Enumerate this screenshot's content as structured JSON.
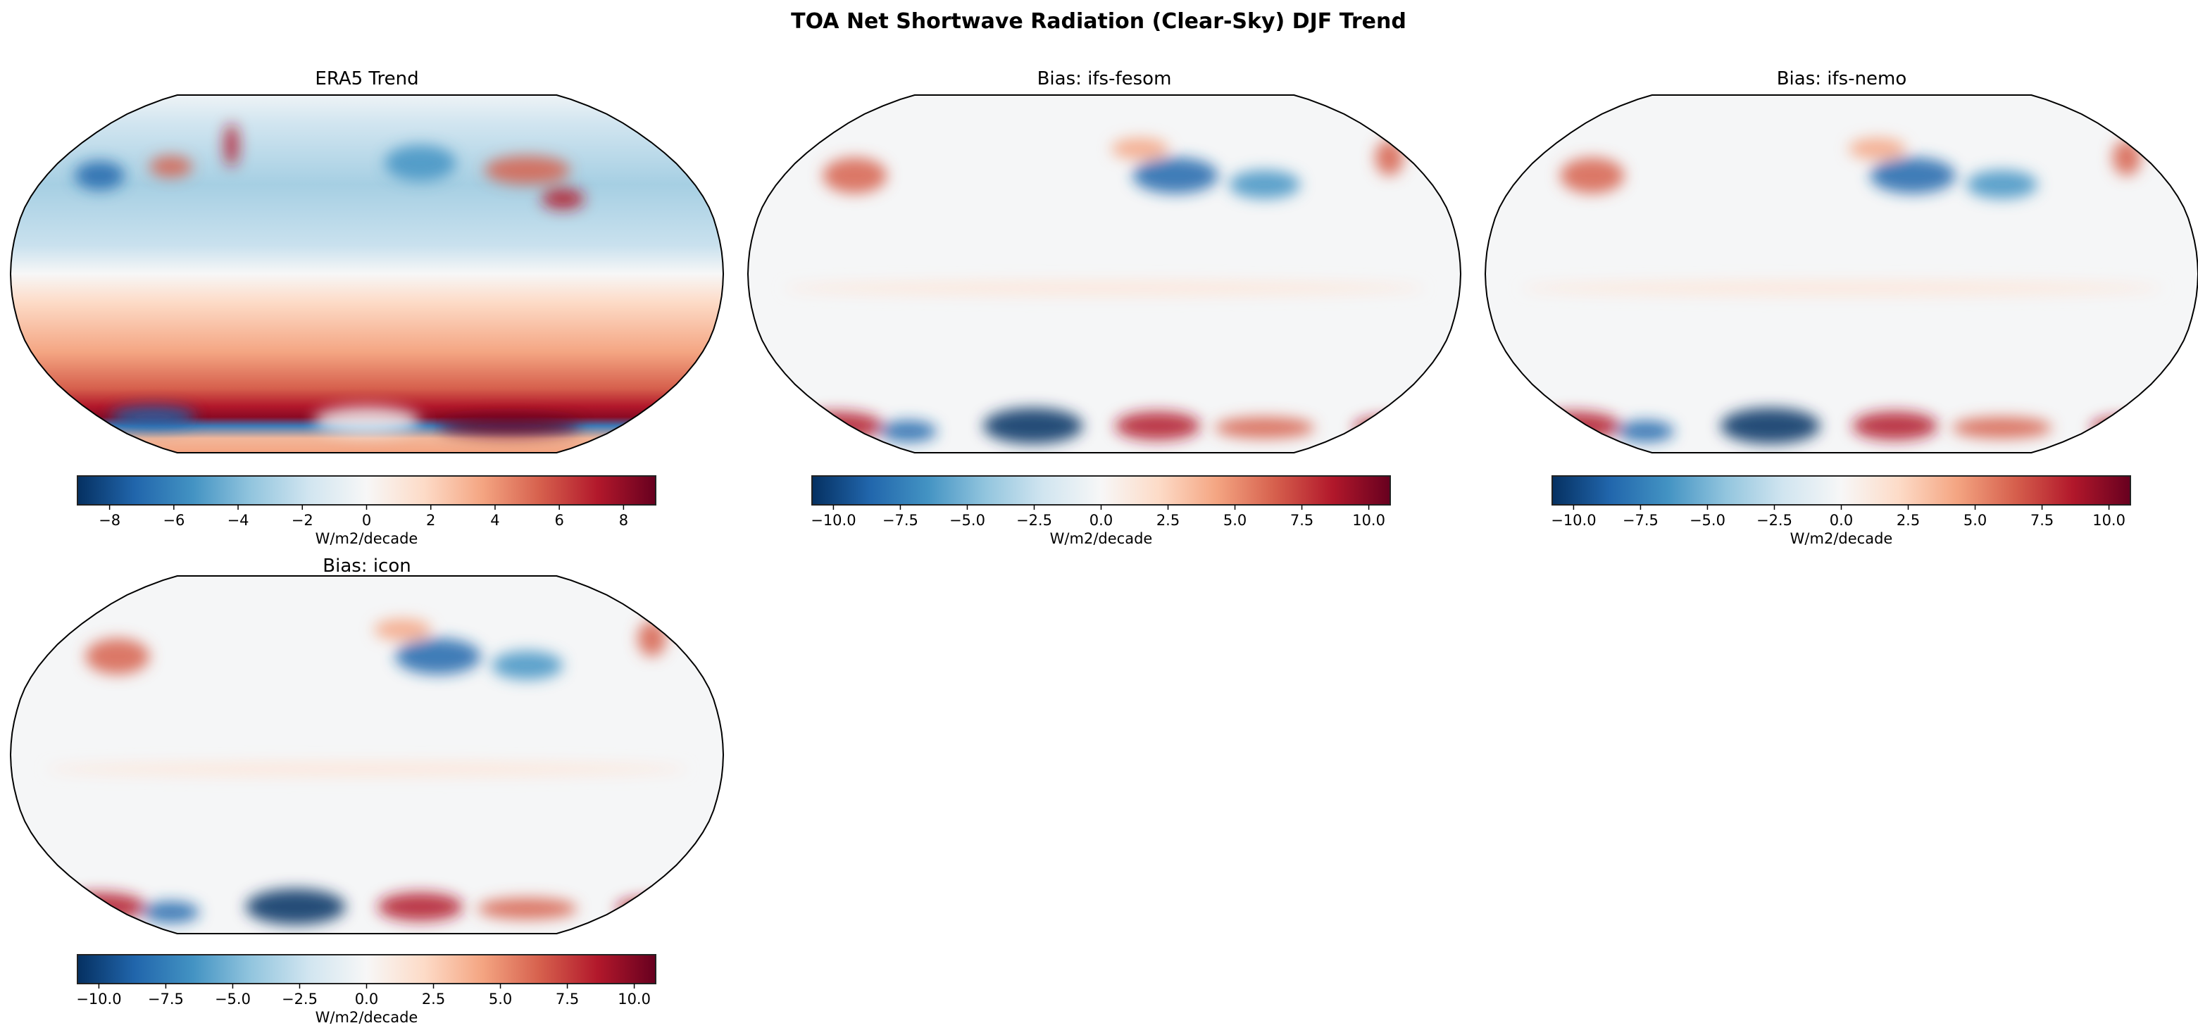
{
  "chart_data": [
    {
      "type": "heatmap",
      "title": "ERA5 Trend",
      "projection": "Robinson",
      "colormap": "RdBu_r",
      "colorbar": {
        "label": "W/m2/decade",
        "range": [
          -9,
          9
        ],
        "ticks": [
          -8,
          -6,
          -4,
          -2,
          0,
          2,
          4,
          6,
          8
        ],
        "tick_labels": [
          "−8",
          "−6",
          "−4",
          "−2",
          "0",
          "2",
          "4",
          "6",
          "8"
        ]
      },
      "style": "era5"
    },
    {
      "type": "heatmap",
      "title": "Bias: ifs-fesom",
      "projection": "Robinson",
      "colormap": "RdBu_r",
      "colorbar": {
        "label": "W/m2/decade",
        "range": [
          -10.8,
          10.8
        ],
        "ticks": [
          -10,
          -7.5,
          -5,
          -2.5,
          0,
          2.5,
          5,
          7.5,
          10
        ],
        "tick_labels": [
          "−10.0",
          "−7.5",
          "−5.0",
          "−2.5",
          "0.0",
          "2.5",
          "5.0",
          "7.5",
          "10.0"
        ]
      },
      "style": "bias"
    },
    {
      "type": "heatmap",
      "title": "Bias: ifs-nemo",
      "projection": "Robinson",
      "colormap": "RdBu_r",
      "colorbar": {
        "label": "W/m2/decade",
        "range": [
          -10.8,
          10.8
        ],
        "ticks": [
          -10,
          -7.5,
          -5,
          -2.5,
          0,
          2.5,
          5,
          7.5,
          10
        ],
        "tick_labels": [
          "−10.0",
          "−7.5",
          "−5.0",
          "−2.5",
          "0.0",
          "2.5",
          "5.0",
          "7.5",
          "10.0"
        ]
      },
      "style": "bias"
    },
    {
      "type": "heatmap",
      "title": "Bias: icon",
      "projection": "Robinson",
      "colormap": "RdBu_r",
      "colorbar": {
        "label": "W/m2/decade",
        "range": [
          -10.8,
          10.8
        ],
        "ticks": [
          -10,
          -7.5,
          -5,
          -2.5,
          0,
          2.5,
          5,
          7.5,
          10
        ],
        "tick_labels": [
          "−10.0",
          "−7.5",
          "−5.0",
          "−2.5",
          "0.0",
          "2.5",
          "5.0",
          "7.5",
          "10.0"
        ]
      },
      "style": "bias"
    }
  ],
  "figure": {
    "title": "TOA Net Shortwave Radiation (Clear-Sky) DJF Trend"
  },
  "colors": {
    "cmap": [
      "#053061",
      "#2166ac",
      "#4393c3",
      "#92c5de",
      "#d1e5f0",
      "#f7f7f7",
      "#fddbc7",
      "#f4a582",
      "#d6604d",
      "#b2182b",
      "#67001f"
    ]
  }
}
